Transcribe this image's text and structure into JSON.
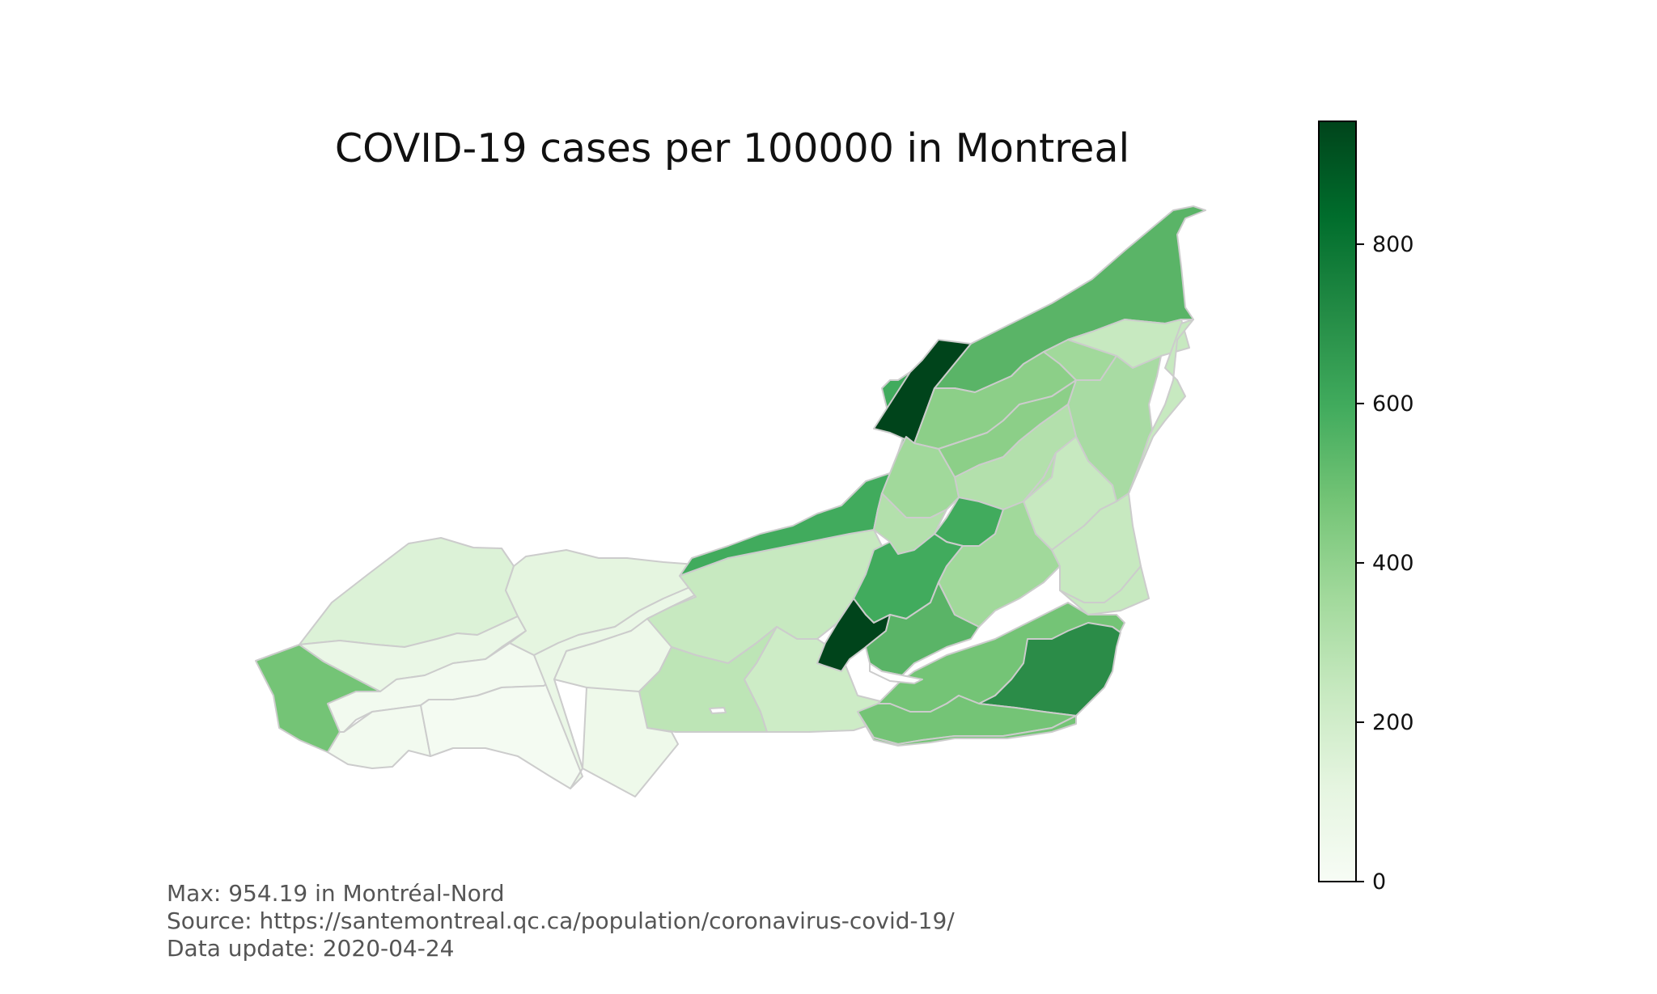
{
  "title": "COVID-19 cases per 100000 in Montreal",
  "footer": {
    "max_line": "Max: 954.19 in Montréal-Nord",
    "source_line": "Source: https://santemontreal.qc.ca/population/coronavirus-covid-19/",
    "update_line": "Data update: 2020-04-24"
  },
  "colormap": {
    "name": "Greens",
    "min": 0,
    "max": 954.19,
    "stops": [
      "#f7fcf5",
      "#e5f5e0",
      "#c7e9c0",
      "#a1d99b",
      "#74c476",
      "#41ab5d",
      "#238b45",
      "#006d2c",
      "#00441b"
    ],
    "ticks": [
      0,
      200,
      400,
      600,
      800
    ],
    "tick_labels": [
      "0",
      "200",
      "400",
      "600",
      "800"
    ]
  },
  "region_border_color": "#cccccc"
}
